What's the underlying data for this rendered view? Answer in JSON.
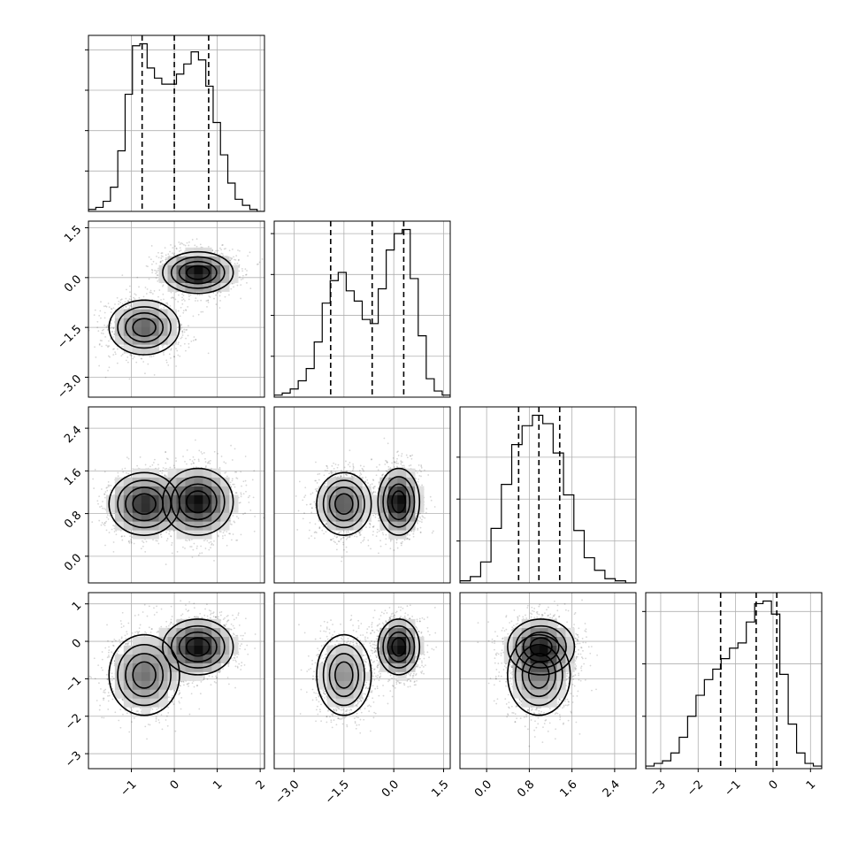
{
  "chart_data": {
    "type": "corner",
    "grid": true,
    "parameters": [
      {
        "range": [
          -2.0,
          2.1
        ],
        "ticks": [
          -1,
          0,
          1,
          2
        ],
        "tick_labels": [
          "−1",
          "0",
          "1",
          "2"
        ],
        "quantiles": [
          -0.75,
          0.0,
          0.8
        ],
        "hist": [
          1,
          2,
          5,
          12,
          30,
          58,
          82,
          83,
          71,
          66,
          63,
          63,
          68,
          73,
          79,
          75,
          62,
          44,
          28,
          14,
          6,
          3,
          1,
          0
        ],
        "hist_ticks": [
          20,
          40,
          60,
          80
        ]
      },
      {
        "range": [
          -3.6,
          1.7
        ],
        "ticks": [
          -3.0,
          -1.5,
          0.0,
          1.5
        ],
        "tick_labels": [
          "−3.0",
          "−1.5",
          "0.0",
          "1.5"
        ],
        "quantiles": [
          -1.9,
          -0.65,
          0.3
        ],
        "hist": [
          1,
          2,
          4,
          8,
          14,
          27,
          46,
          57,
          61,
          52,
          47,
          38,
          36,
          53,
          72,
          80,
          82,
          58,
          30,
          9,
          3,
          1
        ],
        "hist_ticks": [
          20,
          40,
          60,
          80
        ]
      },
      {
        "range": [
          -0.5,
          2.8
        ],
        "ticks": [
          0.0,
          0.8,
          1.6,
          2.4
        ],
        "tick_labels": [
          "0.0",
          "0.8",
          "1.6",
          "2.4"
        ],
        "quantiles": [
          0.6,
          0.98,
          1.37
        ],
        "hist": [
          1,
          3,
          10,
          26,
          47,
          66,
          75,
          80,
          76,
          62,
          42,
          25,
          12,
          6,
          2,
          1,
          0
        ],
        "hist_ticks": [
          20,
          40,
          60
        ]
      },
      {
        "range": [
          -3.4,
          1.3
        ],
        "ticks": [
          -3,
          -2,
          -1,
          0,
          1
        ],
        "tick_labels": [
          "−3",
          "−2",
          "−1",
          "0",
          "1"
        ],
        "quantiles": [
          -1.4,
          -0.45,
          0.1
        ],
        "hist": [
          1,
          2,
          3,
          6,
          12,
          20,
          28,
          34,
          38,
          42,
          46,
          48,
          56,
          63,
          64,
          59,
          36,
          17,
          6,
          2,
          1
        ],
        "hist_ticks": [
          20,
          40,
          60
        ]
      }
    ],
    "row_tick_labels": {
      "1": [
        "1.5",
        "0.0",
        "−1.5",
        "−3.0"
      ],
      "2": [
        "2.4",
        "1.6",
        "0.8",
        "0.0"
      ],
      "3": [
        "1",
        "0",
        "−1",
        "−2",
        "−3"
      ]
    },
    "row_ticks": {
      "1": [
        1.5,
        0.0,
        -1.5,
        -3.0
      ],
      "2": [
        2.4,
        1.6,
        0.8,
        0.0
      ],
      "3": [
        1,
        0,
        -1,
        -2,
        -3
      ]
    },
    "modes": [
      {
        "center": [
          -0.7,
          -1.5,
          0.98,
          -0.9
        ],
        "weight": 0.45,
        "spread": [
          0.42,
          0.42,
          0.3,
          0.55
        ]
      },
      {
        "center": [
          0.55,
          0.15,
          1.02,
          -0.15
        ],
        "weight": 0.55,
        "spread": [
          0.42,
          0.32,
          0.32,
          0.38
        ]
      }
    ]
  }
}
